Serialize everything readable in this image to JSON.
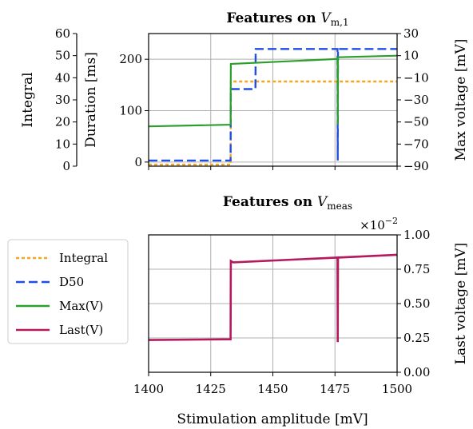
{
  "chart_data": [
    {
      "type": "line",
      "title": "Features on V_m,1",
      "title_text": "Features on ",
      "title_var": "V",
      "title_sub": "m,1",
      "xlim": [
        1400,
        1500
      ],
      "x_ticks": [
        1400,
        1425,
        1450,
        1475,
        1500
      ],
      "axes": {
        "integral": {
          "label": "Integral",
          "ylim": [
            0,
            60
          ],
          "ticks": [
            0,
            10,
            20,
            30,
            40,
            50,
            60
          ]
        },
        "duration": {
          "label": "Duration [ms]",
          "ylim": [
            -8,
            250
          ],
          "ticks": [
            0,
            100,
            200
          ]
        },
        "max_voltage": {
          "label": "Max voltage [mV]",
          "ylim": [
            -90,
            30
          ],
          "ticks": [
            30,
            10,
            -10,
            -30,
            -50,
            -70,
            -90
          ],
          "tick_labels": [
            "30",
            "10",
            "−10",
            "−30",
            "−50",
            "−70",
            "−90"
          ]
        }
      },
      "series": [
        {
          "name": "Integral",
          "axis": "integral",
          "color": "#f5a623",
          "style": "dotted",
          "points": [
            [
              1400,
              0.7
            ],
            [
              1433,
              0.7
            ],
            [
              1433.1,
              38.3
            ],
            [
              1476,
              38.3
            ],
            [
              1476.1,
              38.3
            ],
            [
              1500,
              38.3
            ]
          ]
        },
        {
          "name": "D50",
          "axis": "duration",
          "color": "#1f4fe0",
          "style": "dashed",
          "points": [
            [
              1400,
              3
            ],
            [
              1433,
              3
            ],
            [
              1433.1,
              142
            ],
            [
              1443,
              142
            ],
            [
              1443.1,
              220
            ],
            [
              1476,
              220
            ],
            [
              1476.1,
              3
            ],
            [
              1476.2,
              220
            ],
            [
              1500,
              220
            ]
          ]
        },
        {
          "name": "Max(V)",
          "axis": "max_voltage",
          "color": "#2ca02c",
          "style": "solid",
          "points": [
            [
              1400,
              -54
            ],
            [
              1433,
              -52.5
            ],
            [
              1433.1,
              2.5
            ],
            [
              1476,
              7
            ],
            [
              1476.1,
              -52.5
            ],
            [
              1476.2,
              8.5
            ],
            [
              1500,
              10
            ]
          ]
        }
      ]
    },
    {
      "type": "line",
      "title": "Features on V_meas",
      "title_text": "Features on ",
      "title_var": "V",
      "title_sub": "meas",
      "xlabel": "Stimulation amplitude [mV]",
      "ylabel": "Last voltage [mV]",
      "xlim": [
        1400,
        1500
      ],
      "ylim": [
        0,
        1.0
      ],
      "x_ticks": [
        1400,
        1425,
        1450,
        1475,
        1500
      ],
      "y_ticks": [
        0.0,
        0.25,
        0.5,
        0.75,
        1.0
      ],
      "y_tick_labels": [
        "0.00",
        "0.25",
        "0.50",
        "0.75",
        "1.00"
      ],
      "offset_text_base": "×10",
      "offset_text_exp": "−2",
      "series": [
        {
          "name": "Last(V)",
          "color": "#b5195e",
          "style": "solid",
          "points": [
            [
              1400,
              0.235
            ],
            [
              1433,
              0.24
            ],
            [
              1433.1,
              0.81
            ],
            [
              1434,
              0.8
            ],
            [
              1476,
              0.835
            ],
            [
              1476.1,
              0.22
            ],
            [
              1476.2,
              0.835
            ],
            [
              1500,
              0.855
            ]
          ]
        }
      ]
    }
  ],
  "legend": {
    "placement": "left",
    "entries": [
      {
        "label": "Integral",
        "color": "#f5a623",
        "style": "dotted"
      },
      {
        "label": "D50",
        "color": "#1f4fe0",
        "style": "dashed"
      },
      {
        "label": "Max(V)",
        "color": "#2ca02c",
        "style": "solid"
      },
      {
        "label": "Last(V)",
        "color": "#b5195e",
        "style": "solid"
      }
    ]
  }
}
